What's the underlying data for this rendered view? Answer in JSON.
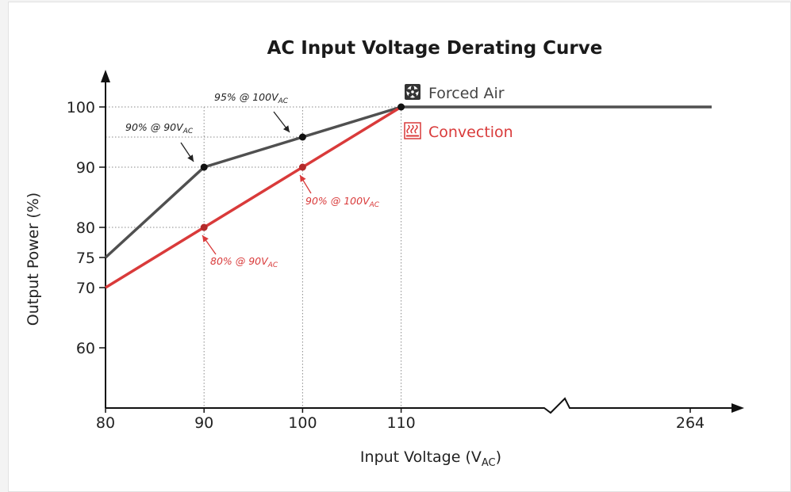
{
  "chart_data": {
    "type": "line",
    "title": "AC Input Voltage Derating Curve",
    "xlabel": "Input Voltage (V",
    "xlabel_sub": "AC",
    "xlabel_close": ")",
    "ylabel": "Output Power (%)",
    "x_ticks": [
      80,
      90,
      100,
      110,
      264
    ],
    "y_ticks": [
      60,
      70,
      75,
      80,
      90,
      100
    ],
    "x_axis_break": true,
    "series": [
      {
        "name": "Forced Air",
        "color": "#505050",
        "icon": "fan-icon",
        "points": [
          [
            80,
            75
          ],
          [
            90,
            90
          ],
          [
            100,
            95
          ],
          [
            110,
            100
          ],
          [
            264,
            100
          ]
        ]
      },
      {
        "name": "Convection",
        "color": "#d93a3a",
        "icon": "convection-heat-icon",
        "points": [
          [
            80,
            70
          ],
          [
            90,
            80
          ],
          [
            100,
            90
          ],
          [
            110,
            100
          ]
        ]
      }
    ],
    "annotations": [
      {
        "text": "90% @ 90V",
        "sub": "AC",
        "series": 0,
        "x": 90,
        "y": 90
      },
      {
        "text": "95% @ 100V",
        "sub": "AC",
        "series": 0,
        "x": 100,
        "y": 95
      },
      {
        "text": "90% @ 100V",
        "sub": "AC",
        "series": 1,
        "x": 100,
        "y": 90
      },
      {
        "text": "80% @ 90V",
        "sub": "AC",
        "series": 1,
        "x": 90,
        "y": 80
      }
    ]
  }
}
